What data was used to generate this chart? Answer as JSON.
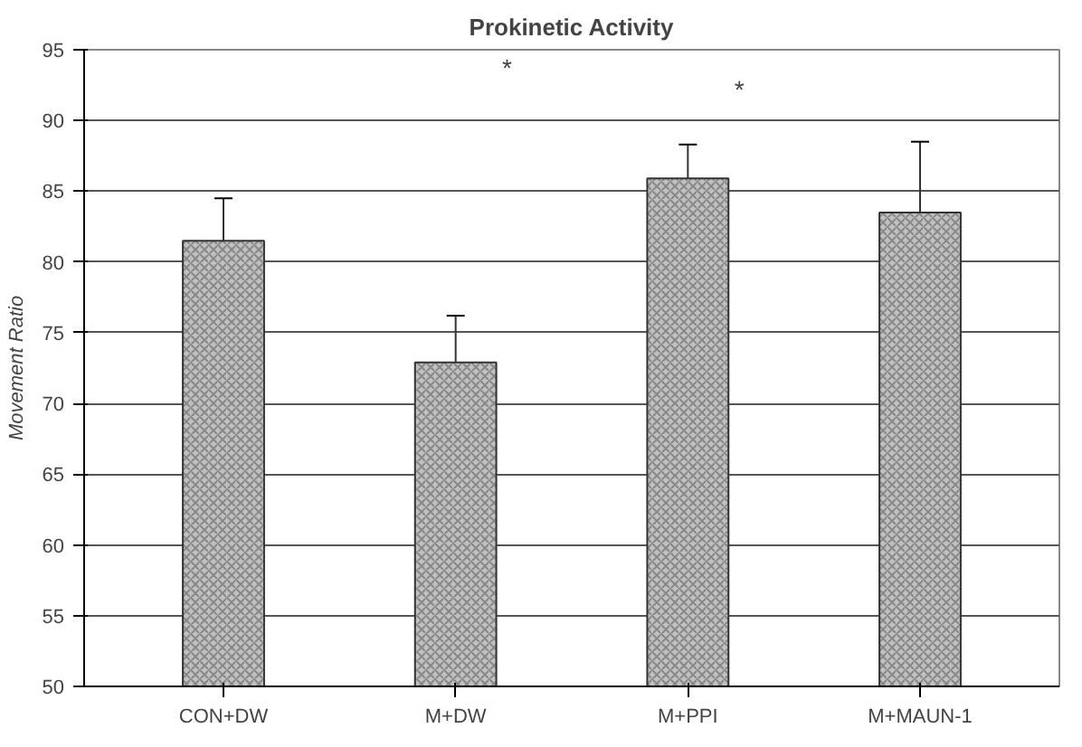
{
  "chart_data": {
    "type": "bar",
    "title": "Prokinetic Activity",
    "ylabel": "Movement Ratio",
    "categories": [
      "CON+DW",
      "M+DW",
      "M+PPI",
      "M+MAUN-1"
    ],
    "values": [
      81.5,
      72.9,
      85.9,
      83.5
    ],
    "errors": [
      3,
      3.3,
      2.4,
      5
    ],
    "color": "#c0c0c0",
    "ylim": [
      50,
      95
    ],
    "yticks": [
      50,
      55,
      60,
      65,
      70,
      75,
      80,
      85,
      90,
      95
    ],
    "grid": "y",
    "annotations": [
      "*",
      "*"
    ]
  }
}
